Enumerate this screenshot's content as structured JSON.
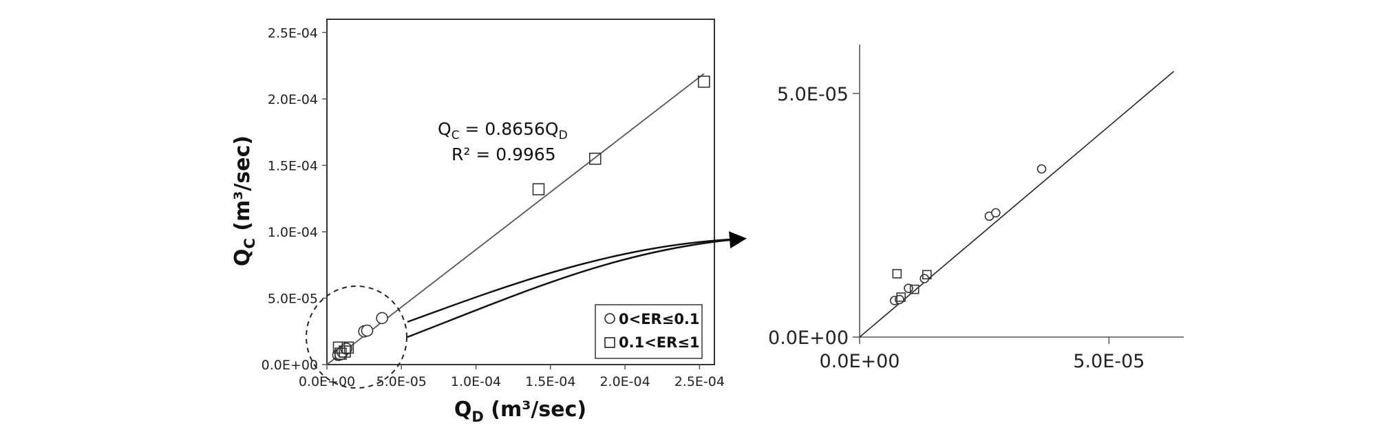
{
  "chart_data": [
    {
      "type": "scatter",
      "xlabel": "Q_D (m³/sec)",
      "ylabel": "Q_C (m³/sec)",
      "xlim": [
        0,
        0.00026
      ],
      "ylim": [
        0,
        0.00026
      ],
      "xticks": [
        "0.0E+00",
        "5.0E-05",
        "1.0E-04",
        "1.5E-04",
        "2.0E-04",
        "2.5E-04"
      ],
      "yticks": [
        "0.0E+00",
        "5.0E-05",
        "1.0E-04",
        "1.5E-04",
        "2.0E-04",
        "2.5E-04"
      ],
      "grid": false,
      "legend_position": "bottom-right",
      "series": [
        {
          "name": "0<ER≤0.1",
          "marker": "circle",
          "x": [
            7.6e-06,
            9.1e-06,
            1.05e-05,
            1.3e-05,
            2.5e-05,
            2.7e-05,
            3.7e-05
          ],
          "y": [
            7.2e-06,
            7.6e-06,
            9.6e-06,
            1.2e-05,
            2.5e-05,
            2.56e-05,
            3.5e-05
          ]
        },
        {
          "name": "0.1<ER≤1",
          "marker": "square",
          "x": [
            8.1e-06,
            9.2e-06,
            1.2e-05,
            1.4e-05,
            0.000142,
            0.00018,
            0.000253
          ],
          "y": [
            1.28e-05,
            8.2e-06,
            9.8e-06,
            1.28e-05,
            0.000132,
            0.000155,
            0.000213
          ]
        }
      ],
      "trendline": {
        "slope": 0.8656,
        "x_range": [
          0,
          0.000253
        ]
      },
      "annotations": {
        "equation_lhs": "Q",
        "equation_lhs_sub": "C",
        "equation_mid": " = 0.8656Q",
        "equation_rhs_sub": "D",
        "r2": "R² = 0.9965"
      }
    },
    {
      "type": "scatter",
      "xlabel": "",
      "ylabel": "",
      "xlim": [
        0,
        6.5e-05
      ],
      "ylim": [
        0,
        6e-05
      ],
      "xticks": [
        "0.0E+00",
        "5.0E-05"
      ],
      "yticks": [
        "0.0E+00",
        "5.0E-05"
      ],
      "grid": false,
      "series": [
        {
          "name": "0<ER≤0.1",
          "marker": "circle",
          "x": [
            7e-06,
            8e-06,
            9.8e-06,
            1.3e-05,
            2.6e-05,
            2.73e-05,
            3.65e-05
          ],
          "y": [
            7.5e-06,
            7.7e-06,
            1e-05,
            1.2e-05,
            2.48e-05,
            2.55e-05,
            3.45e-05
          ]
        },
        {
          "name": "0.1<ER≤1",
          "marker": "square",
          "x": [
            7.5e-06,
            8.3e-06,
            1.1e-05,
            1.35e-05
          ],
          "y": [
            1.3e-05,
            8.2e-06,
            9.8e-06,
            1.28e-05
          ]
        }
      ],
      "trendline": {
        "slope": 0.8656,
        "x_range": [
          0,
          6.3e-05
        ]
      }
    }
  ]
}
